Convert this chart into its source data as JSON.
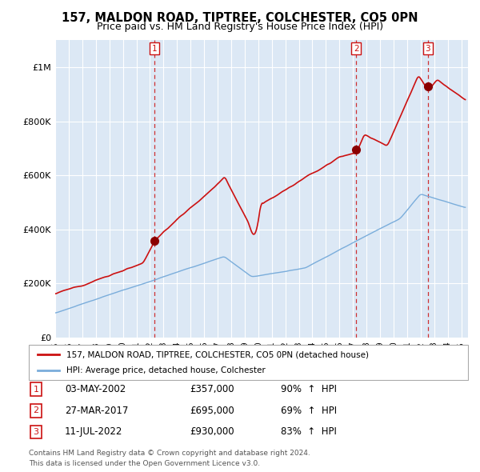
{
  "title": "157, MALDON ROAD, TIPTREE, COLCHESTER, CO5 0PN",
  "subtitle": "Price paid vs. HM Land Registry's House Price Index (HPI)",
  "title_fontsize": 10.5,
  "subtitle_fontsize": 9,
  "ylim": [
    0,
    1100000
  ],
  "yticks": [
    0,
    200000,
    400000,
    600000,
    800000,
    1000000
  ],
  "ytick_labels": [
    "£0",
    "£200K",
    "£400K",
    "£600K",
    "£800K",
    "£1M"
  ],
  "line_color_hpi": "#7aaddb",
  "line_color_price": "#cc1111",
  "marker_color": "#8b0000",
  "vline_color": "#cc1111",
  "bg_color": "#dce8f5",
  "grid_color": "#ffffff",
  "legend_line1": "157, MALDON ROAD, TIPTREE, COLCHESTER, CO5 0PN (detached house)",
  "legend_line2": "HPI: Average price, detached house, Colchester",
  "transactions": [
    {
      "num": 1,
      "date": "03-MAY-2002",
      "price": 357000,
      "pct": "90%",
      "direction": "↑",
      "year": 2002.35
    },
    {
      "num": 2,
      "date": "27-MAR-2017",
      "price": 695000,
      "pct": "69%",
      "direction": "↑",
      "year": 2017.23
    },
    {
      "num": 3,
      "date": "11-JUL-2022",
      "price": 930000,
      "pct": "83%",
      "direction": "↑",
      "year": 2022.53
    }
  ],
  "footer1": "Contains HM Land Registry data © Crown copyright and database right 2024.",
  "footer2": "This data is licensed under the Open Government Licence v3.0.",
  "xmin": 1995,
  "xmax": 2025.5
}
